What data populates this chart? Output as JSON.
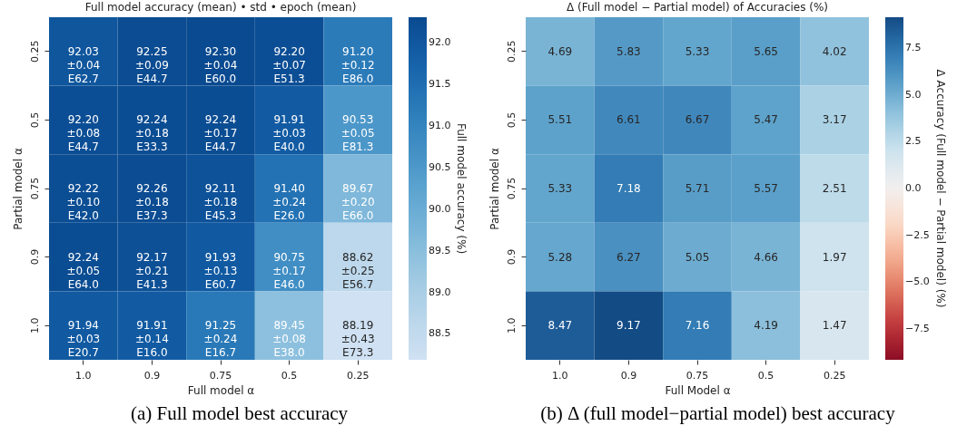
{
  "chart_data": [
    {
      "type": "heatmap",
      "title": "Full model accuracy (mean) • std • epoch (mean)",
      "xlabel": "Full model α",
      "ylabel": "Partial model α",
      "clabel": "Full model accuracy (%)",
      "categories": [
        "1.0",
        "0.9",
        "0.75",
        "0.5",
        "0.25"
      ],
      "y_categories": [
        "0.25",
        "0.5",
        "0.75",
        "0.9",
        "1.0"
      ],
      "cells": [
        [
          92.03,
          92.25,
          92.3,
          92.2,
          91.2
        ],
        [
          92.2,
          92.24,
          92.24,
          91.91,
          90.53
        ],
        [
          92.22,
          92.26,
          92.11,
          91.4,
          89.67
        ],
        [
          92.24,
          92.17,
          91.93,
          90.75,
          88.62
        ],
        [
          91.94,
          91.91,
          91.25,
          89.45,
          88.19
        ]
      ],
      "cell_labels": [
        [
          "92.03\n±0.04\nE62.7",
          "92.25\n±0.09\nE44.7",
          "92.30\n±0.04\nE60.0",
          "92.20\n±0.07\nE51.3",
          "91.20\n±0.12\nE86.0"
        ],
        [
          "92.20\n±0.08\nE44.7",
          "92.24\n±0.18\nE33.3",
          "92.24\n±0.17\nE44.7",
          "91.91\n±0.03\nE40.0",
          "90.53\n±0.05\nE81.3"
        ],
        [
          "92.22\n±0.10\nE42.0",
          "92.26\n±0.18\nE37.3",
          "92.11\n±0.18\nE45.3",
          "91.40\n±0.24\nE26.0",
          "89.67\n±0.20\nE66.0"
        ],
        [
          "92.24\n±0.05\nE64.0",
          "92.17\n±0.21\nE41.3",
          "91.93\n±0.13\nE60.7",
          "90.75\n±0.17\nE46.0",
          "88.62\n±0.25\nE56.7"
        ],
        [
          "91.94\n±0.03\nE20.7",
          "91.91\n±0.14\nE16.0",
          "91.25\n±0.24\nE16.7",
          "89.45\n±0.08\nE38.0",
          "88.19\n±0.43\nE73.3"
        ]
      ],
      "clim": [
        88.19,
        92.3
      ],
      "cticks": [
        88.5,
        {
          "value": 89,
          "label": "89.0"
        },
        89.5,
        {
          "value": 90,
          "label": "90.0"
        },
        90.5,
        {
          "value": 91,
          "label": "91.0"
        },
        91.5,
        {
          "value": 92,
          "label": "92.0"
        }
      ],
      "annotations": [
        "(a) Full model best accuracy"
      ]
    },
    {
      "type": "heatmap",
      "title": "Δ (Full model − Partial model) of Accuracies (%)",
      "xlabel": "Full Model α",
      "ylabel": "Partial model α",
      "clabel": "Δ Accuracy (Full model − Partial model) (%)",
      "categories": [
        "1.0",
        "0.9",
        "0.75",
        "0.5",
        "0.25"
      ],
      "y_categories": [
        "0.25",
        "0.5",
        "0.75",
        "0.9",
        "1.0"
      ],
      "cells": [
        [
          4.69,
          5.83,
          5.33,
          5.65,
          4.02
        ],
        [
          5.51,
          6.61,
          6.67,
          5.47,
          3.17
        ],
        [
          5.33,
          7.18,
          5.71,
          5.57,
          2.51
        ],
        [
          5.28,
          6.27,
          5.05,
          4.66,
          1.97
        ],
        [
          8.47,
          9.17,
          7.16,
          4.19,
          1.47
        ]
      ],
      "data_labels": true,
      "clim": [
        -9.17,
        9.17
      ],
      "cticks": [
        -7.5,
        {
          "value": -5,
          "label": "−5.0"
        },
        -2.5,
        {
          "value": 0,
          "label": "0.0"
        },
        2.5,
        {
          "value": 5,
          "label": "5.0"
        },
        7.5
      ],
      "annotations": [
        "(b) Δ (full model−partial model) best accuracy"
      ]
    }
  ]
}
